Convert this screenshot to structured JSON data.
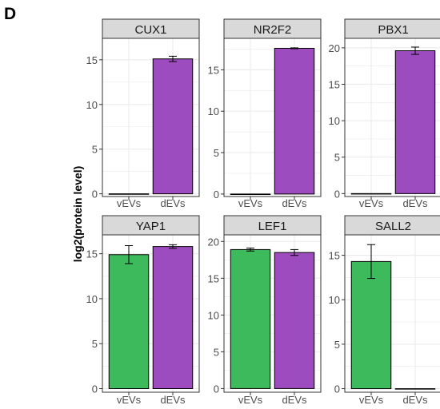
{
  "figure": {
    "panel_letter": "D",
    "ylabel": "log2(protein level)"
  },
  "colors": {
    "vEVs": "#3dbb5c",
    "dEVs": "#9d4cc0",
    "strip_fill": "#d9d9d9",
    "grid": "#ebebeb"
  },
  "chart_data": [
    {
      "type": "bar",
      "title": "CUX1",
      "categories": [
        "vEVs",
        "dEVs"
      ],
      "values": [
        0,
        15.1
      ],
      "errors": [
        0,
        0.3
      ],
      "ylim": [
        -0.3,
        17.4
      ],
      "yticks": [
        0,
        5,
        10,
        15
      ],
      "grid": true
    },
    {
      "type": "bar",
      "title": "NR2F2",
      "categories": [
        "vEVs",
        "dEVs"
      ],
      "values": [
        0,
        17.6
      ],
      "errors": [
        0,
        0.05
      ],
      "ylim": [
        -0.3,
        18.8
      ],
      "yticks": [
        0,
        5,
        10,
        15
      ],
      "grid": true
    },
    {
      "type": "bar",
      "title": "PBX1",
      "categories": [
        "vEVs",
        "dEVs"
      ],
      "values": [
        0,
        19.6
      ],
      "errors": [
        0,
        0.5
      ],
      "ylim": [
        -0.4,
        21.3
      ],
      "yticks": [
        0,
        5,
        10,
        15,
        20
      ],
      "grid": true
    },
    {
      "type": "bar",
      "title": "YAP1",
      "categories": [
        "vEVs",
        "dEVs"
      ],
      "values": [
        14.9,
        15.8
      ],
      "errors": [
        1.0,
        0.2
      ],
      "ylim": [
        -0.4,
        17.1
      ],
      "yticks": [
        0,
        5,
        10,
        15
      ],
      "grid": true
    },
    {
      "type": "bar",
      "title": "LEF1",
      "categories": [
        "vEVs",
        "dEVs"
      ],
      "values": [
        18.9,
        18.5
      ],
      "errors": [
        0.2,
        0.4
      ],
      "ylim": [
        -0.5,
        20.9
      ],
      "yticks": [
        0,
        5,
        10,
        15,
        20
      ],
      "grid": true
    },
    {
      "type": "bar",
      "title": "SALL2",
      "categories": [
        "vEVs",
        "dEVs"
      ],
      "values": [
        14.3,
        0
      ],
      "errors": [
        1.9,
        0
      ],
      "ylim": [
        -0.4,
        17.3
      ],
      "yticks": [
        0,
        5,
        10,
        15
      ],
      "grid": true
    }
  ]
}
